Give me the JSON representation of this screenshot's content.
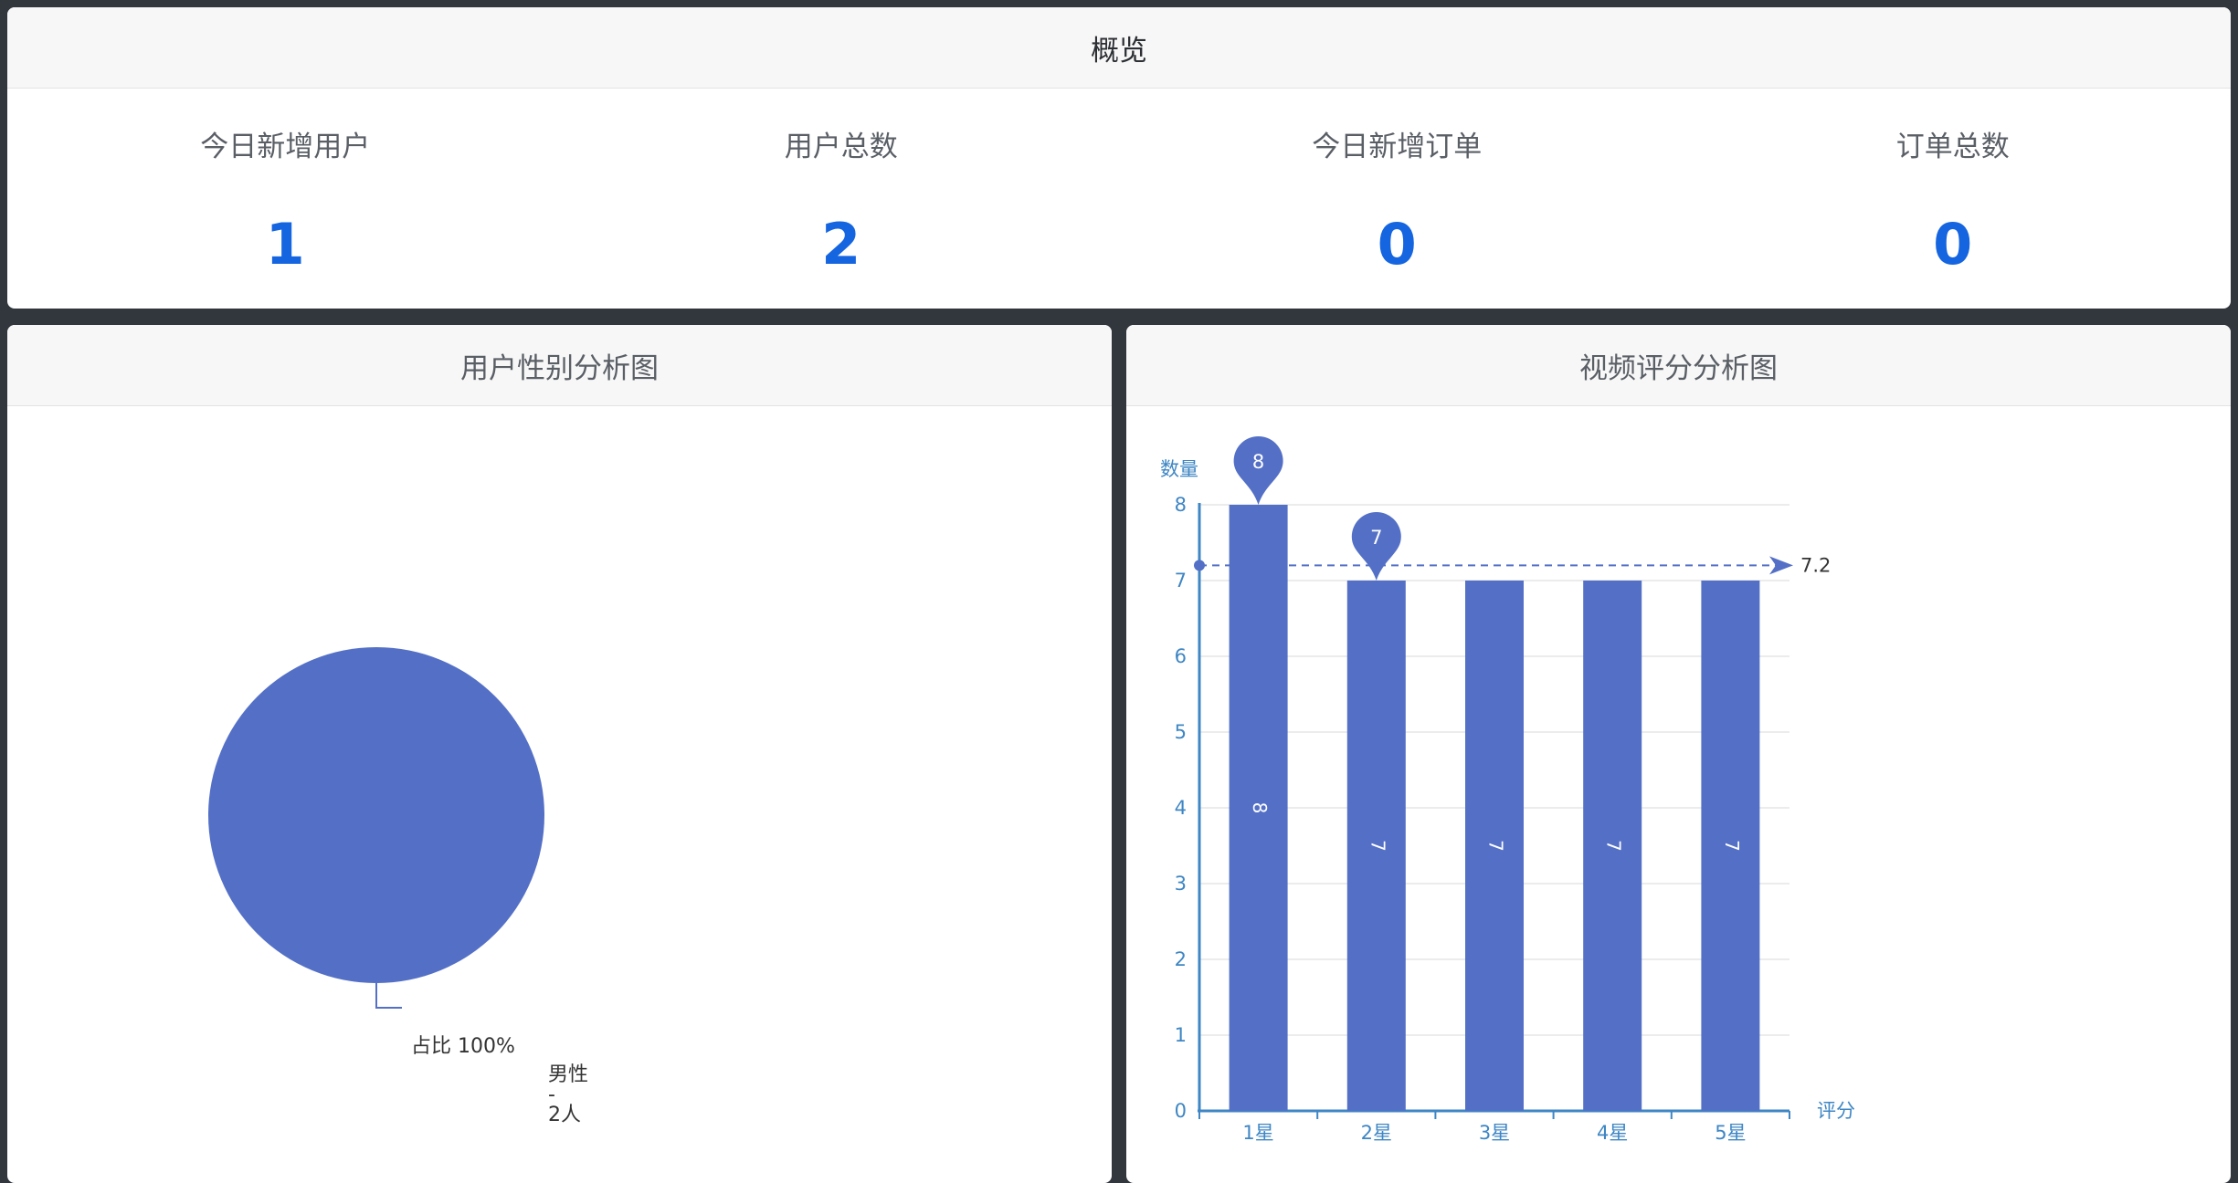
{
  "overview": {
    "title": "概览",
    "stats": [
      {
        "label": "今日新增用户",
        "value": "1"
      },
      {
        "label": "用户总数",
        "value": "2"
      },
      {
        "label": "今日新增订单",
        "value": "0"
      },
      {
        "label": "订单总数",
        "value": "0"
      }
    ]
  },
  "gender_panel": {
    "title": "用户性别分析图"
  },
  "rating_panel": {
    "title": "视频评分分析图"
  },
  "chart_data": [
    {
      "type": "pie",
      "slices": [
        {
          "name": "男性",
          "value": 2,
          "percent": 100
        }
      ],
      "label_lines": [
        "男性",
        "-",
        "2人"
      ],
      "percent_label": "占比 100%",
      "color": "#5470c6"
    },
    {
      "type": "bar",
      "categories": [
        "1星",
        "2星",
        "3星",
        "4星",
        "5星"
      ],
      "values": [
        8,
        7,
        7,
        7,
        7
      ],
      "data_labels": [
        "8",
        "7",
        "7",
        "7",
        "7"
      ],
      "xlabel": "评分",
      "ylabel": "数量",
      "ylim": [
        0,
        8
      ],
      "yticks": [
        "0",
        "1",
        "2",
        "3",
        "4",
        "5",
        "6",
        "7",
        "8"
      ],
      "mark_points": [
        {
          "category": "1星",
          "value": 8,
          "label": "8"
        },
        {
          "category": "2星",
          "value": 7,
          "label": "7"
        }
      ],
      "mark_line": {
        "type": "average",
        "value": 7.2,
        "label": "7.2"
      },
      "color": "#5470c6",
      "axis_color": "#3e86c4",
      "grid": true
    }
  ]
}
